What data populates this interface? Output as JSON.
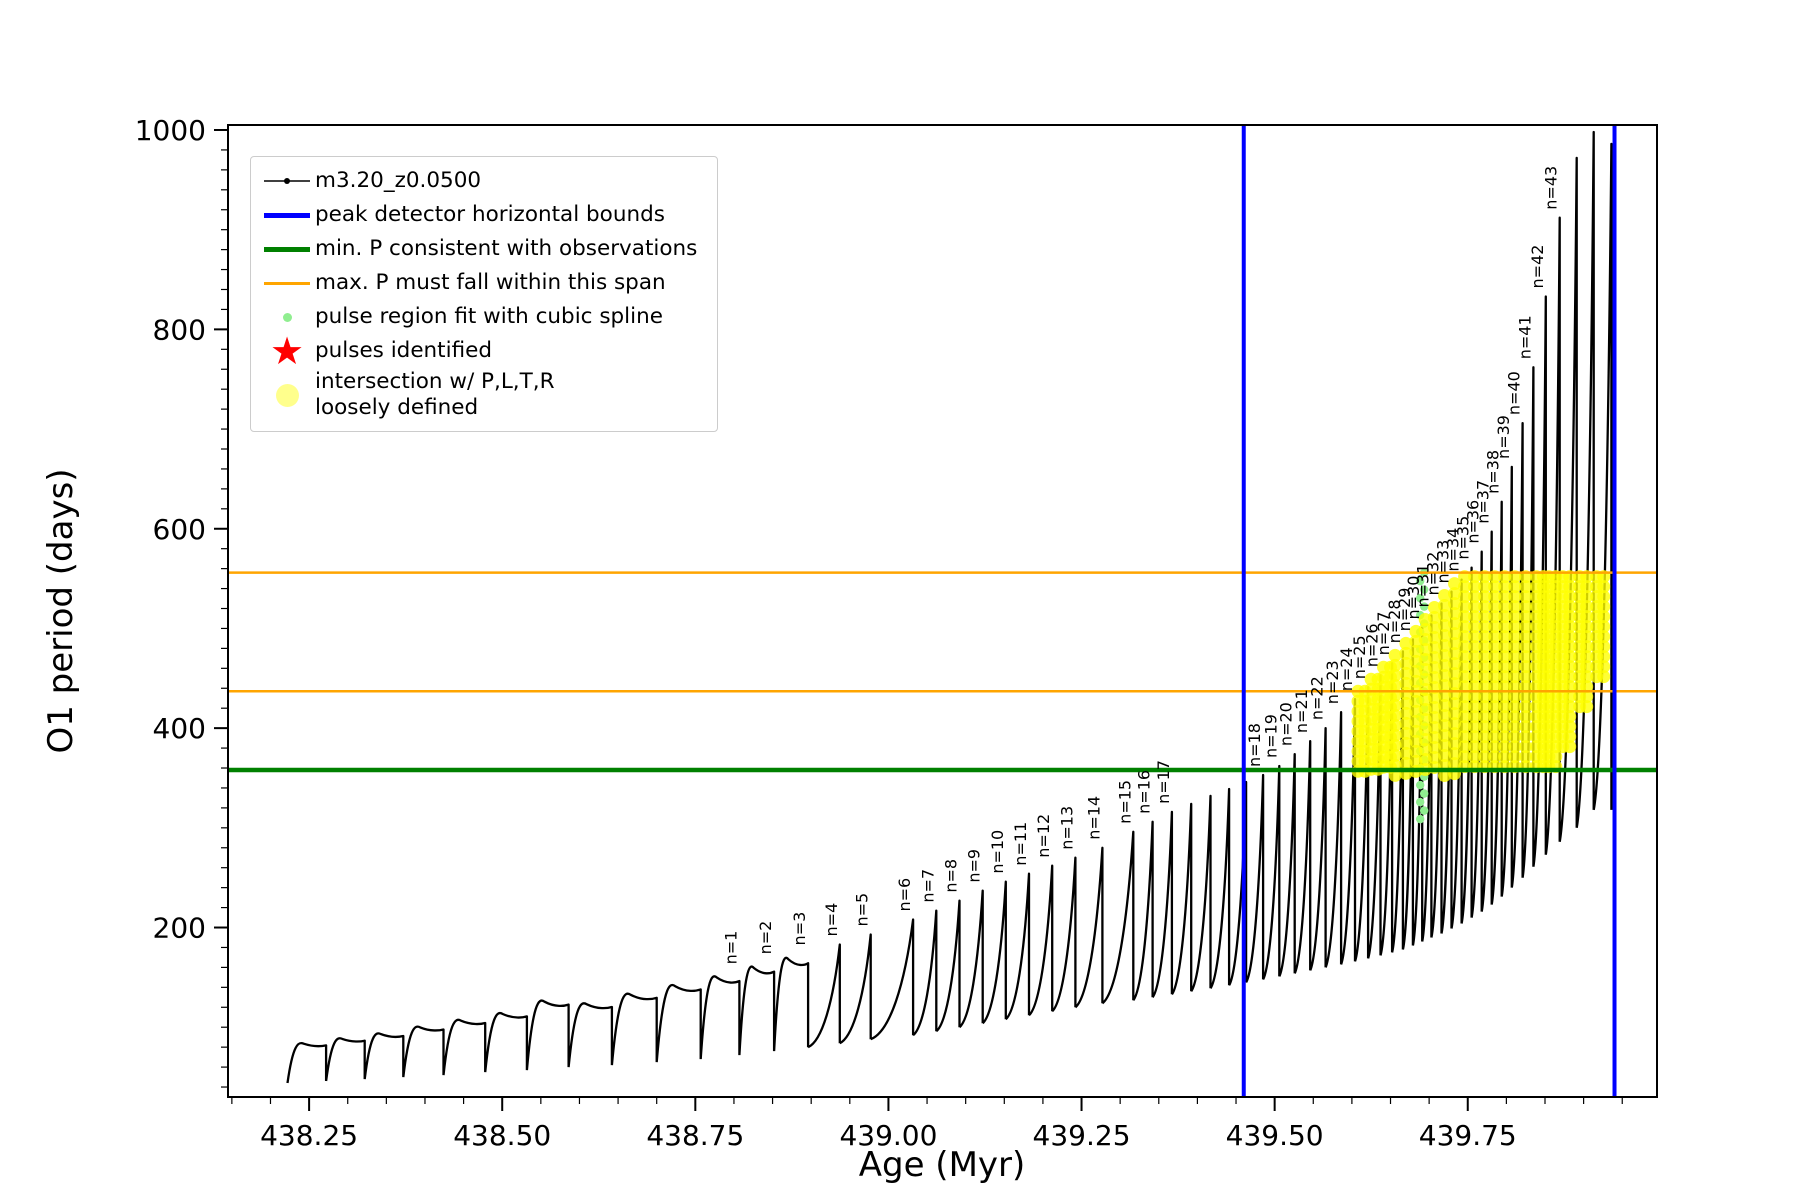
{
  "chart_data": {
    "type": "line",
    "title": "",
    "xlabel": "Age (Myr)",
    "ylabel": "O1 period (days)",
    "series_name": "m3.20_z0.0500",
    "xlim": [
      438.145,
      439.995
    ],
    "ylim": [
      30,
      1005
    ],
    "xticks": [
      438.25,
      438.5,
      438.75,
      439.0,
      439.25,
      439.5,
      439.75
    ],
    "xtick_labels": [
      "438.25",
      "438.50",
      "438.75",
      "439.00",
      "439.25",
      "439.50",
      "439.75"
    ],
    "yticks": [
      200,
      400,
      600,
      800,
      1000
    ],
    "ytick_labels": [
      "200",
      "400",
      "600",
      "800",
      "1000"
    ],
    "minor_x_step": 0.05,
    "minor_y_step": 20,
    "line_color": "#000000",
    "vlines": {
      "x": [
        439.46,
        439.94
      ],
      "color": "#0000FF",
      "width": 4,
      "label": "peak detector horizontal bounds"
    },
    "hlines": [
      {
        "y": 358,
        "color": "#008000",
        "width": 4.5,
        "label": "min. P consistent with observations"
      },
      {
        "y": 437,
        "color": "#FFA500",
        "width": 2.5,
        "label": "max. P must fall within this span"
      },
      {
        "y": 556,
        "color": "#FFA500",
        "width": 2.5,
        "label": "max. P must fall within this span"
      }
    ],
    "spline_fit": {
      "x": 439.691,
      "y_min": 308,
      "y_max": 556,
      "color": "#90EE90",
      "label": "pulse region fit with cubic spline"
    },
    "pulses_identified": {
      "marker": "star",
      "color": "#FF0000",
      "label": "pulses identified"
    },
    "intersection_region": {
      "x_min": 439.612,
      "x_max": 439.937,
      "y_min": 352,
      "y_max": 552,
      "taper_from_x": 439.862,
      "taper_y_min_end": 465,
      "color": "#FFFF00",
      "label": "intersection w/ P,L,T,R loosely defined"
    },
    "pulse_label_prefix": "n=",
    "pulses_format": [
      "n",
      "age_start",
      "age_end",
      "period_min",
      "period_peak"
    ],
    "pulses": [
      [
        0,
        438.222,
        438.272,
        44,
        86
      ],
      [
        0,
        438.272,
        438.322,
        46,
        91
      ],
      [
        0,
        438.322,
        438.372,
        48,
        96
      ],
      [
        0,
        438.372,
        438.424,
        50,
        103
      ],
      [
        0,
        438.424,
        438.478,
        52,
        110
      ],
      [
        0,
        438.478,
        438.532,
        55,
        117
      ],
      [
        0,
        438.532,
        438.586,
        57,
        130
      ],
      [
        0,
        438.586,
        438.642,
        60,
        127
      ],
      [
        0,
        438.642,
        438.7,
        62,
        137
      ],
      [
        0,
        438.7,
        438.757,
        65,
        146
      ],
      [
        1,
        438.757,
        438.807,
        68,
        155
      ],
      [
        2,
        438.807,
        438.852,
        72,
        165
      ],
      [
        3,
        438.852,
        438.896,
        76,
        174
      ],
      [
        4,
        438.896,
        438.937,
        80,
        183
      ],
      [
        5,
        438.937,
        438.977,
        84,
        193
      ],
      [
        6,
        438.977,
        439.032,
        88,
        208
      ],
      [
        7,
        439.032,
        439.062,
        92,
        217
      ],
      [
        8,
        439.062,
        439.092,
        96,
        227
      ],
      [
        9,
        439.092,
        439.122,
        100,
        237
      ],
      [
        10,
        439.122,
        439.152,
        104,
        246
      ],
      [
        11,
        439.152,
        439.182,
        108,
        254
      ],
      [
        12,
        439.182,
        439.212,
        112,
        262
      ],
      [
        13,
        439.212,
        439.242,
        116,
        270
      ],
      [
        14,
        439.242,
        439.277,
        120,
        280
      ],
      [
        15,
        439.277,
        439.317,
        124,
        296
      ],
      [
        16,
        439.317,
        439.342,
        127,
        306
      ],
      [
        17,
        439.342,
        439.367,
        130,
        316
      ],
      [
        0,
        439.367,
        439.392,
        133,
        324
      ],
      [
        0,
        439.392,
        439.417,
        136,
        332
      ],
      [
        0,
        439.417,
        439.441,
        139,
        339
      ],
      [
        0,
        439.441,
        439.463,
        142,
        346
      ],
      [
        18,
        439.463,
        439.485,
        145,
        353
      ],
      [
        19,
        439.485,
        439.506,
        148,
        362
      ],
      [
        20,
        439.506,
        439.526,
        151,
        374
      ],
      [
        21,
        439.526,
        439.546,
        154,
        387
      ],
      [
        22,
        439.546,
        439.566,
        157,
        400
      ],
      [
        23,
        439.566,
        439.586,
        160,
        416
      ],
      [
        24,
        439.586,
        439.604,
        163,
        429
      ],
      [
        25,
        439.604,
        439.621,
        166,
        441
      ],
      [
        26,
        439.621,
        439.637,
        169,
        453
      ],
      [
        27,
        439.637,
        439.652,
        172,
        465
      ],
      [
        28,
        439.652,
        439.666,
        175,
        477
      ],
      [
        29,
        439.666,
        439.679,
        178,
        489
      ],
      [
        30,
        439.679,
        439.691,
        182,
        501
      ],
      [
        31,
        439.691,
        439.703,
        186,
        513
      ],
      [
        32,
        439.703,
        439.716,
        190,
        525
      ],
      [
        33,
        439.716,
        439.729,
        194,
        537
      ],
      [
        34,
        439.729,
        439.742,
        199,
        549
      ],
      [
        35,
        439.742,
        439.755,
        204,
        561
      ],
      [
        36,
        439.755,
        439.768,
        210,
        577
      ],
      [
        37,
        439.768,
        439.781,
        216,
        597
      ],
      [
        38,
        439.781,
        439.794,
        223,
        627
      ],
      [
        39,
        439.794,
        439.807,
        231,
        662
      ],
      [
        40,
        439.807,
        439.821,
        240,
        706
      ],
      [
        41,
        439.821,
        439.835,
        250,
        762
      ],
      [
        42,
        439.835,
        439.851,
        261,
        833
      ],
      [
        43,
        439.851,
        439.869,
        273,
        912
      ],
      [
        0,
        439.869,
        439.891,
        286,
        972
      ],
      [
        0,
        439.891,
        439.913,
        300,
        998
      ],
      [
        0,
        439.913,
        439.936,
        318,
        986
      ]
    ],
    "legend": [
      {
        "label": "m3.20_z0.0500",
        "marker": "line-dot",
        "color": "#000000",
        "thickness": 1.6
      },
      {
        "label": "peak detector horizontal bounds",
        "marker": "line",
        "color": "#0000FF",
        "thickness": 5
      },
      {
        "label": "min. P consistent with observations",
        "marker": "line",
        "color": "#008000",
        "thickness": 5
      },
      {
        "label": "max. P must fall within this span",
        "marker": "line",
        "color": "#FFA500",
        "thickness": 3
      },
      {
        "label": "pulse region fit with cubic spline",
        "marker": "dot",
        "color": "#90EE90",
        "size": 9
      },
      {
        "label": "pulses identified",
        "marker": "star",
        "color": "#FF0000",
        "size": 38
      },
      {
        "label": "intersection w/ P,L,T,R\nloosely defined",
        "marker": "dot",
        "color": "rgba(255,255,0,0.45)",
        "size": 23
      }
    ]
  }
}
